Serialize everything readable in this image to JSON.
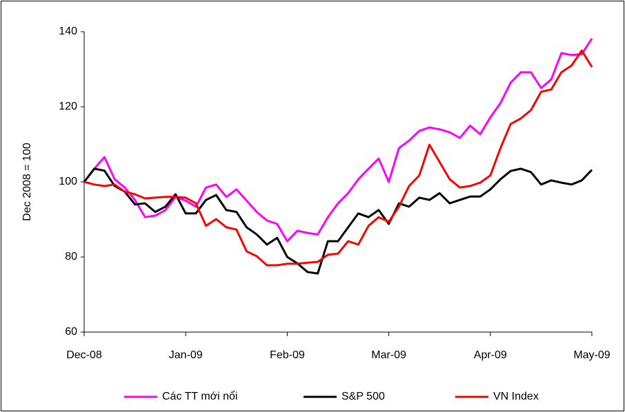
{
  "chart_data": {
    "type": "line",
    "ylabel": "Dec 2008 = 100",
    "categories": [
      "Dec-08",
      null,
      null,
      null,
      null,
      null,
      null,
      null,
      null,
      null,
      "Jan-09",
      null,
      null,
      null,
      null,
      null,
      null,
      null,
      null,
      null,
      "Feb-09",
      null,
      null,
      null,
      null,
      null,
      null,
      null,
      null,
      null,
      "Mar-09",
      null,
      null,
      null,
      null,
      null,
      null,
      null,
      null,
      null,
      "Apr-09",
      null,
      null,
      null,
      null,
      null,
      null,
      null,
      null,
      null,
      "May-09"
    ],
    "series": [
      {
        "name": "Các TT mới nổi",
        "color": "#ff00ff",
        "values": [
          100,
          103.5,
          106.6,
          100.7,
          98.5,
          95.2,
          90.6,
          91,
          92.5,
          96,
          95,
          93.4,
          98.5,
          99.3,
          96,
          98,
          95,
          92,
          89.7,
          88.8,
          84.2,
          87,
          86.4,
          86,
          90.6,
          94.3,
          97,
          100.7,
          103.5,
          106.2,
          100,
          109,
          111,
          113.6,
          114.5,
          114,
          113.2,
          111.7,
          115,
          112.7,
          117.2,
          121,
          126.4,
          129.2,
          129.2,
          125,
          127.3,
          134.3,
          133.8,
          134,
          138.2
        ]
      },
      {
        "name": "S&P 500",
        "color": "#000000",
        "values": [
          100,
          103.5,
          103,
          98.9,
          97.4,
          94,
          94.3,
          92,
          93.4,
          96.7,
          91.6,
          91.6,
          95.2,
          96.5,
          92.5,
          92,
          87.9,
          86,
          83.3,
          85.1,
          80,
          78.3,
          76,
          75.6,
          84.2,
          84.2,
          87.9,
          91.6,
          90.6,
          92.5,
          88.8,
          94.3,
          93.4,
          95.8,
          95.2,
          97,
          94.3,
          95.2,
          96.1,
          96.1,
          98,
          100.7,
          102.9,
          103.5,
          102.6,
          99.3,
          100.4,
          99.8,
          99.3,
          100.4,
          103.2
        ]
      },
      {
        "name": "VN Index",
        "color": "#ff0000",
        "values": [
          100,
          99.3,
          98.9,
          99.3,
          97.4,
          96.7,
          95.6,
          95.8,
          96,
          96,
          95.8,
          94.3,
          88.3,
          90.1,
          87.9,
          87.3,
          81.5,
          80.2,
          77.8,
          77.8,
          78.2,
          78.2,
          78.5,
          78.7,
          80.6,
          80.9,
          84.2,
          83.3,
          88.3,
          90.6,
          89.4,
          93.4,
          98.9,
          101.7,
          109.9,
          105.3,
          100.7,
          98.5,
          98.9,
          99.8,
          101.7,
          109,
          115.4,
          116.9,
          119.1,
          124,
          124.6,
          129.2,
          131,
          135,
          130.6
        ]
      }
    ],
    "ylim": [
      60,
      140
    ],
    "yticks": [
      60,
      80,
      100,
      120,
      140
    ],
    "grid": false,
    "legend": "bottom"
  }
}
